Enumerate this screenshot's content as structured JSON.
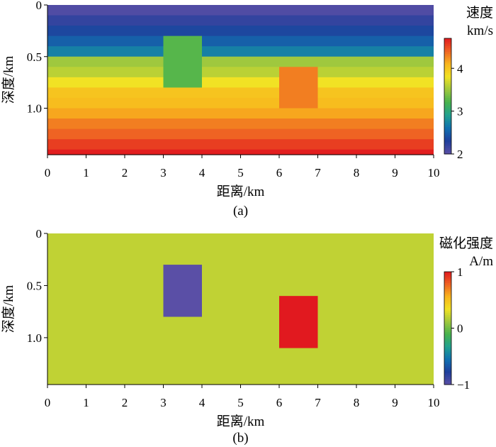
{
  "chart_data": [
    {
      "type": "heatmap",
      "panel_label": "(a)",
      "xlabel": "距离/km",
      "ylabel": "深度/km",
      "xlim": [
        0,
        10
      ],
      "ylim": [
        1.45,
        0
      ],
      "x_ticks": [
        "0",
        "1",
        "2",
        "3",
        "4",
        "5",
        "6",
        "7",
        "8",
        "9",
        "10"
      ],
      "y_ticks": [
        {
          "value": 0,
          "label": "0"
        },
        {
          "value": 0.5,
          "label": "0.5"
        },
        {
          "value": 1.0,
          "label": "1.0"
        }
      ],
      "colorbar": {
        "title_lines": [
          "速度",
          "km/s"
        ],
        "range": [
          2,
          4.7
        ],
        "ticks": [
          {
            "value": 2,
            "label": "2"
          },
          {
            "value": 3,
            "label": "3"
          },
          {
            "value": 4,
            "label": "4"
          }
        ],
        "colormap": [
          "#5a4fa6",
          "#1f3f9c",
          "#1170b0",
          "#21a190",
          "#47b24e",
          "#9fc83e",
          "#f1e224",
          "#f8b51d",
          "#ef6323",
          "#e1191f"
        ]
      },
      "layers": [
        {
          "depth_top": 0.0,
          "depth_bottom": 0.1,
          "velocity": 2.05
        },
        {
          "depth_top": 0.1,
          "depth_bottom": 0.2,
          "velocity": 2.2
        },
        {
          "depth_top": 0.2,
          "depth_bottom": 0.3,
          "velocity": 2.35
        },
        {
          "depth_top": 0.3,
          "depth_bottom": 0.4,
          "velocity": 2.5
        },
        {
          "depth_top": 0.4,
          "depth_bottom": 0.5,
          "velocity": 2.7
        },
        {
          "depth_top": 0.5,
          "depth_bottom": 0.6,
          "velocity": 3.5
        },
        {
          "depth_top": 0.6,
          "depth_bottom": 0.7,
          "velocity": 3.6
        },
        {
          "depth_top": 0.7,
          "depth_bottom": 0.8,
          "velocity": 3.8
        },
        {
          "depth_top": 0.8,
          "depth_bottom": 0.9,
          "velocity": 4.0
        },
        {
          "depth_top": 0.9,
          "depth_bottom": 1.0,
          "velocity": 4.05
        },
        {
          "depth_top": 1.0,
          "depth_bottom": 1.1,
          "velocity": 4.15
        },
        {
          "depth_top": 1.1,
          "depth_bottom": 1.2,
          "velocity": 4.3
        },
        {
          "depth_top": 1.2,
          "depth_bottom": 1.3,
          "velocity": 4.4
        },
        {
          "depth_top": 1.3,
          "depth_bottom": 1.4,
          "velocity": 4.55
        },
        {
          "depth_top": 1.4,
          "depth_bottom": 1.45,
          "velocity": 4.68
        }
      ],
      "anomalies": [
        {
          "x_range": [
            3,
            4
          ],
          "depth_range": [
            0.3,
            0.8
          ],
          "velocity": 3.25
        },
        {
          "x_range": [
            6,
            7
          ],
          "depth_range": [
            0.6,
            1.0
          ],
          "velocity": 4.3
        }
      ]
    },
    {
      "type": "heatmap",
      "panel_label": "(b)",
      "xlabel": "距离/km",
      "ylabel": "深度/km",
      "xlim": [
        0,
        10
      ],
      "ylim": [
        1.45,
        0
      ],
      "x_ticks": [
        "0",
        "1",
        "2",
        "3",
        "4",
        "5",
        "6",
        "7",
        "8",
        "9",
        "10"
      ],
      "y_ticks": [
        {
          "value": 0,
          "label": "0"
        },
        {
          "value": 0.5,
          "label": "0.5"
        },
        {
          "value": 1.0,
          "label": "1.0"
        }
      ],
      "colorbar": {
        "title_lines": [
          "磁化强度",
          "A/m"
        ],
        "range": [
          -1,
          1
        ],
        "ticks": [
          {
            "value": 1,
            "label": "1"
          },
          {
            "value": 0,
            "label": "0"
          },
          {
            "value": -1,
            "label": "−1"
          }
        ],
        "colormap": [
          "#5a4fa6",
          "#1f3f9c",
          "#1170b0",
          "#21a190",
          "#47b24e",
          "#9fc83e",
          "#f1e224",
          "#f8b51d",
          "#ef6323",
          "#e1191f"
        ]
      },
      "background_value": 0.2,
      "anomalies": [
        {
          "x_range": [
            3,
            4
          ],
          "depth_range": [
            0.3,
            0.8
          ],
          "value": -1
        },
        {
          "x_range": [
            6,
            7
          ],
          "depth_range": [
            0.6,
            1.1
          ],
          "value": 1
        }
      ]
    }
  ]
}
